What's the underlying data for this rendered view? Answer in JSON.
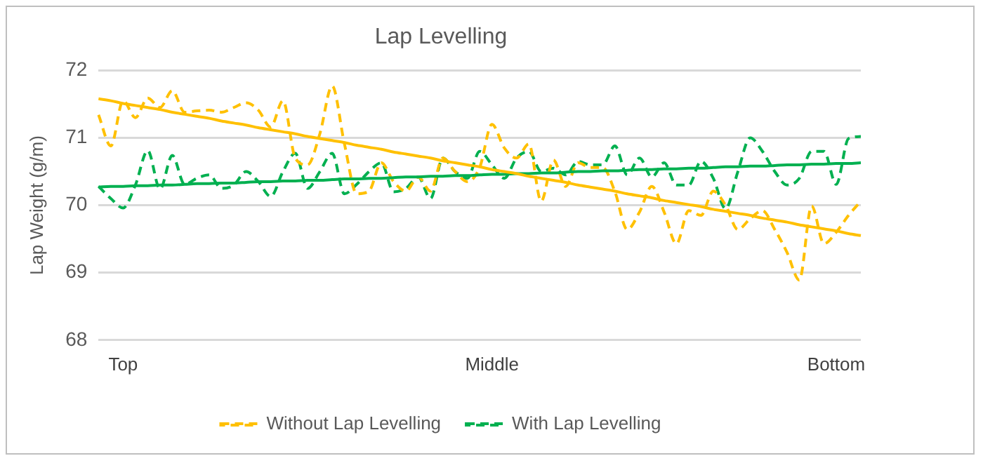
{
  "chart_data": {
    "type": "line",
    "title": "Lap Levelling",
    "ylabel": "Lap Weight (g/m)",
    "categories": [
      null,
      null,
      "Top",
      null,
      null,
      null,
      null,
      null,
      null,
      null,
      null,
      null,
      null,
      null,
      null,
      null,
      null,
      null,
      null,
      null,
      null,
      null,
      null,
      null,
      null,
      null,
      null,
      null,
      null,
      null,
      null,
      null,
      "Middle",
      null,
      null,
      null,
      null,
      null,
      null,
      null,
      null,
      null,
      null,
      null,
      null,
      null,
      null,
      null,
      null,
      null,
      null,
      null,
      null,
      null,
      null,
      null,
      null,
      null,
      null,
      null,
      "Bottom",
      null,
      null
    ],
    "ylim": [
      68,
      72
    ],
    "yticks": [
      68,
      69,
      70,
      71,
      72
    ],
    "grid": "y",
    "legend": "bottom",
    "marker": "none",
    "series": [
      {
        "name": "Without Lap Levelling",
        "color": "#ffc000",
        "line_style": "dashed",
        "values": [
          71.34,
          70.88,
          71.55,
          71.3,
          71.59,
          71.45,
          71.7,
          71.38,
          71.4,
          71.41,
          71.38,
          71.45,
          71.52,
          71.41,
          71.16,
          71.55,
          70.7,
          70.6,
          71.06,
          71.77,
          70.91,
          70.17,
          70.21,
          70.63,
          70.35,
          70.21,
          70.42,
          70.21,
          70.7,
          70.5,
          70.35,
          70.56,
          71.2,
          70.85,
          70.7,
          70.91,
          70.06,
          70.67,
          70.28,
          70.63,
          70.56,
          70.56,
          70.2,
          69.64,
          69.9,
          70.28,
          69.9,
          69.43,
          69.92,
          69.85,
          70.21,
          70.0,
          69.64,
          69.8,
          69.92,
          69.64,
          69.3,
          68.89,
          69.99,
          69.43,
          69.6,
          69.85,
          70.06
        ]
      },
      {
        "name": "With Lap Levelling",
        "color": "#00b050",
        "line_style": "dashed",
        "values": [
          70.28,
          70.1,
          69.96,
          70.3,
          70.81,
          70.24,
          70.74,
          70.31,
          70.4,
          70.45,
          70.25,
          70.3,
          70.5,
          70.35,
          70.13,
          70.5,
          70.77,
          70.25,
          70.5,
          70.77,
          70.17,
          70.31,
          70.5,
          70.63,
          70.2,
          70.25,
          70.42,
          70.1,
          70.7,
          70.5,
          70.4,
          70.8,
          70.6,
          70.4,
          70.7,
          70.8,
          70.5,
          70.55,
          70.45,
          70.65,
          70.6,
          70.6,
          70.88,
          70.45,
          70.7,
          70.42,
          70.63,
          70.3,
          70.3,
          70.65,
          70.4,
          69.95,
          70.5,
          71.0,
          70.8,
          70.5,
          70.3,
          70.4,
          70.8,
          70.8,
          70.31,
          70.99,
          71.02
        ]
      },
      {
        "type": "line",
        "color": "#ffc000",
        "line_style": "solid",
        "values": [
          71.58,
          71.55,
          71.51,
          71.48,
          71.45,
          71.42,
          71.38,
          71.35,
          71.32,
          71.29,
          71.25,
          71.22,
          71.19,
          71.15,
          71.12,
          71.09,
          71.06,
          71.02,
          70.99,
          70.96,
          70.93,
          70.89,
          70.86,
          70.83,
          70.79,
          70.76,
          70.73,
          70.7,
          70.66,
          70.63,
          70.6,
          70.57,
          70.53,
          70.5,
          70.47,
          70.43,
          70.4,
          70.37,
          70.34,
          70.3,
          70.27,
          70.24,
          70.21,
          70.17,
          70.14,
          70.11,
          70.07,
          70.04,
          70.01,
          69.98,
          69.94,
          69.91,
          69.88,
          69.85,
          69.81,
          69.78,
          69.75,
          69.71,
          69.68,
          69.65,
          69.62,
          69.58,
          69.55
        ]
      },
      {
        "type": "line",
        "color": "#00b050",
        "line_style": "solid",
        "values": [
          70.27,
          70.28,
          70.28,
          70.29,
          70.29,
          70.3,
          70.3,
          70.31,
          70.32,
          70.32,
          70.33,
          70.33,
          70.34,
          70.35,
          70.35,
          70.36,
          70.36,
          70.37,
          70.37,
          70.38,
          70.39,
          70.39,
          70.4,
          70.4,
          70.41,
          70.42,
          70.42,
          70.43,
          70.43,
          70.44,
          70.44,
          70.45,
          70.46,
          70.46,
          70.47,
          70.47,
          70.48,
          70.48,
          70.49,
          70.5,
          70.5,
          70.51,
          70.51,
          70.52,
          70.53,
          70.53,
          70.54,
          70.54,
          70.55,
          70.55,
          70.56,
          70.57,
          70.57,
          70.58,
          70.58,
          70.59,
          70.6,
          70.6,
          70.61,
          70.61,
          70.62,
          70.62,
          70.63
        ]
      }
    ]
  }
}
